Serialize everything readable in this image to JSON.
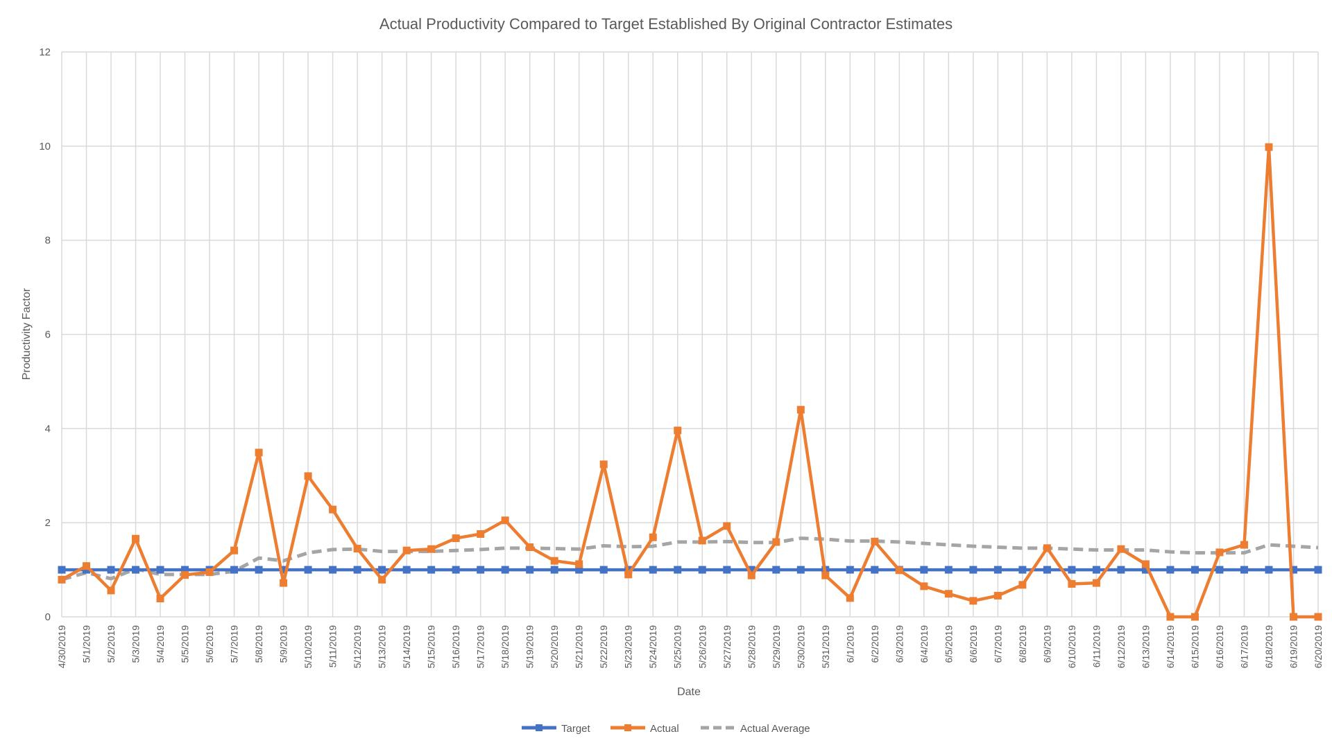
{
  "chart_data": {
    "type": "line",
    "title": "Actual Productivity Compared to Target Established By Original Contractor Estimates",
    "xlabel": "Date",
    "ylabel": "Productivity Factor",
    "ylim": [
      0,
      12
    ],
    "yticks": [
      0,
      2,
      4,
      6,
      8,
      10,
      12
    ],
    "grid": true,
    "legend_position": "bottom",
    "categories": [
      "4/30/2019",
      "5/1/2019",
      "5/2/2019",
      "5/3/2019",
      "5/4/2019",
      "5/5/2019",
      "5/6/2019",
      "5/7/2019",
      "5/8/2019",
      "5/9/2019",
      "5/10/2019",
      "5/11/2019",
      "5/12/2019",
      "5/13/2019",
      "5/14/2019",
      "5/15/2019",
      "5/16/2019",
      "5/17/2019",
      "5/18/2019",
      "5/19/2019",
      "5/20/2019",
      "5/21/2019",
      "5/22/2019",
      "5/23/2019",
      "5/24/2019",
      "5/25/2019",
      "5/26/2019",
      "5/27/2019",
      "5/28/2019",
      "5/29/2019",
      "5/30/2019",
      "5/31/2019",
      "6/1/2019",
      "6/2/2019",
      "6/3/2019",
      "6/4/2019",
      "6/5/2019",
      "6/6/2019",
      "6/7/2019",
      "6/8/2019",
      "6/9/2019",
      "6/10/2019",
      "6/11/2019",
      "6/12/2019",
      "6/13/2019",
      "6/14/2019",
      "6/15/2019",
      "6/16/2019",
      "6/17/2019",
      "6/18/2019",
      "6/19/2019",
      "6/20/2019"
    ],
    "series": [
      {
        "name": "Target",
        "color": "#4472C4",
        "style": "solid-marker",
        "values": [
          1,
          1,
          1,
          1,
          1,
          1,
          1,
          1,
          1,
          1,
          1,
          1,
          1,
          1,
          1,
          1,
          1,
          1,
          1,
          1,
          1,
          1,
          1,
          1,
          1,
          1,
          1,
          1,
          1,
          1,
          1,
          1,
          1,
          1,
          1,
          1,
          1,
          1,
          1,
          1,
          1,
          1,
          1,
          1,
          1,
          1,
          1,
          1,
          1,
          1,
          1,
          1
        ]
      },
      {
        "name": "Actual",
        "color": "#ED7D31",
        "style": "solid-marker",
        "values": [
          0.79,
          1.08,
          0.56,
          1.66,
          0.39,
          0.89,
          0.95,
          1.41,
          3.49,
          0.72,
          2.99,
          2.28,
          1.45,
          0.79,
          1.41,
          1.44,
          1.67,
          1.76,
          2.05,
          1.48,
          1.19,
          1.12,
          3.24,
          0.9,
          1.69,
          3.96,
          1.62,
          1.93,
          0.88,
          1.59,
          4.4,
          0.88,
          0.4,
          1.6,
          0.99,
          0.65,
          0.49,
          0.34,
          0.45,
          0.68,
          1.46,
          0.7,
          0.72,
          1.44,
          1.12,
          0,
          0,
          1.37,
          1.53,
          9.98,
          0,
          0
        ]
      },
      {
        "name": "Actual Average",
        "color": "#A5A5A5",
        "style": "dashed",
        "values": [
          0.79,
          0.94,
          0.81,
          1.02,
          0.9,
          0.9,
          0.9,
          0.97,
          1.25,
          1.19,
          1.36,
          1.43,
          1.44,
          1.39,
          1.39,
          1.39,
          1.41,
          1.43,
          1.46,
          1.46,
          1.45,
          1.44,
          1.51,
          1.49,
          1.5,
          1.59,
          1.59,
          1.6,
          1.58,
          1.58,
          1.67,
          1.65,
          1.61,
          1.61,
          1.59,
          1.56,
          1.53,
          1.5,
          1.48,
          1.46,
          1.46,
          1.44,
          1.42,
          1.42,
          1.42,
          1.38,
          1.36,
          1.36,
          1.36,
          1.53,
          1.5,
          1.47
        ]
      }
    ]
  }
}
